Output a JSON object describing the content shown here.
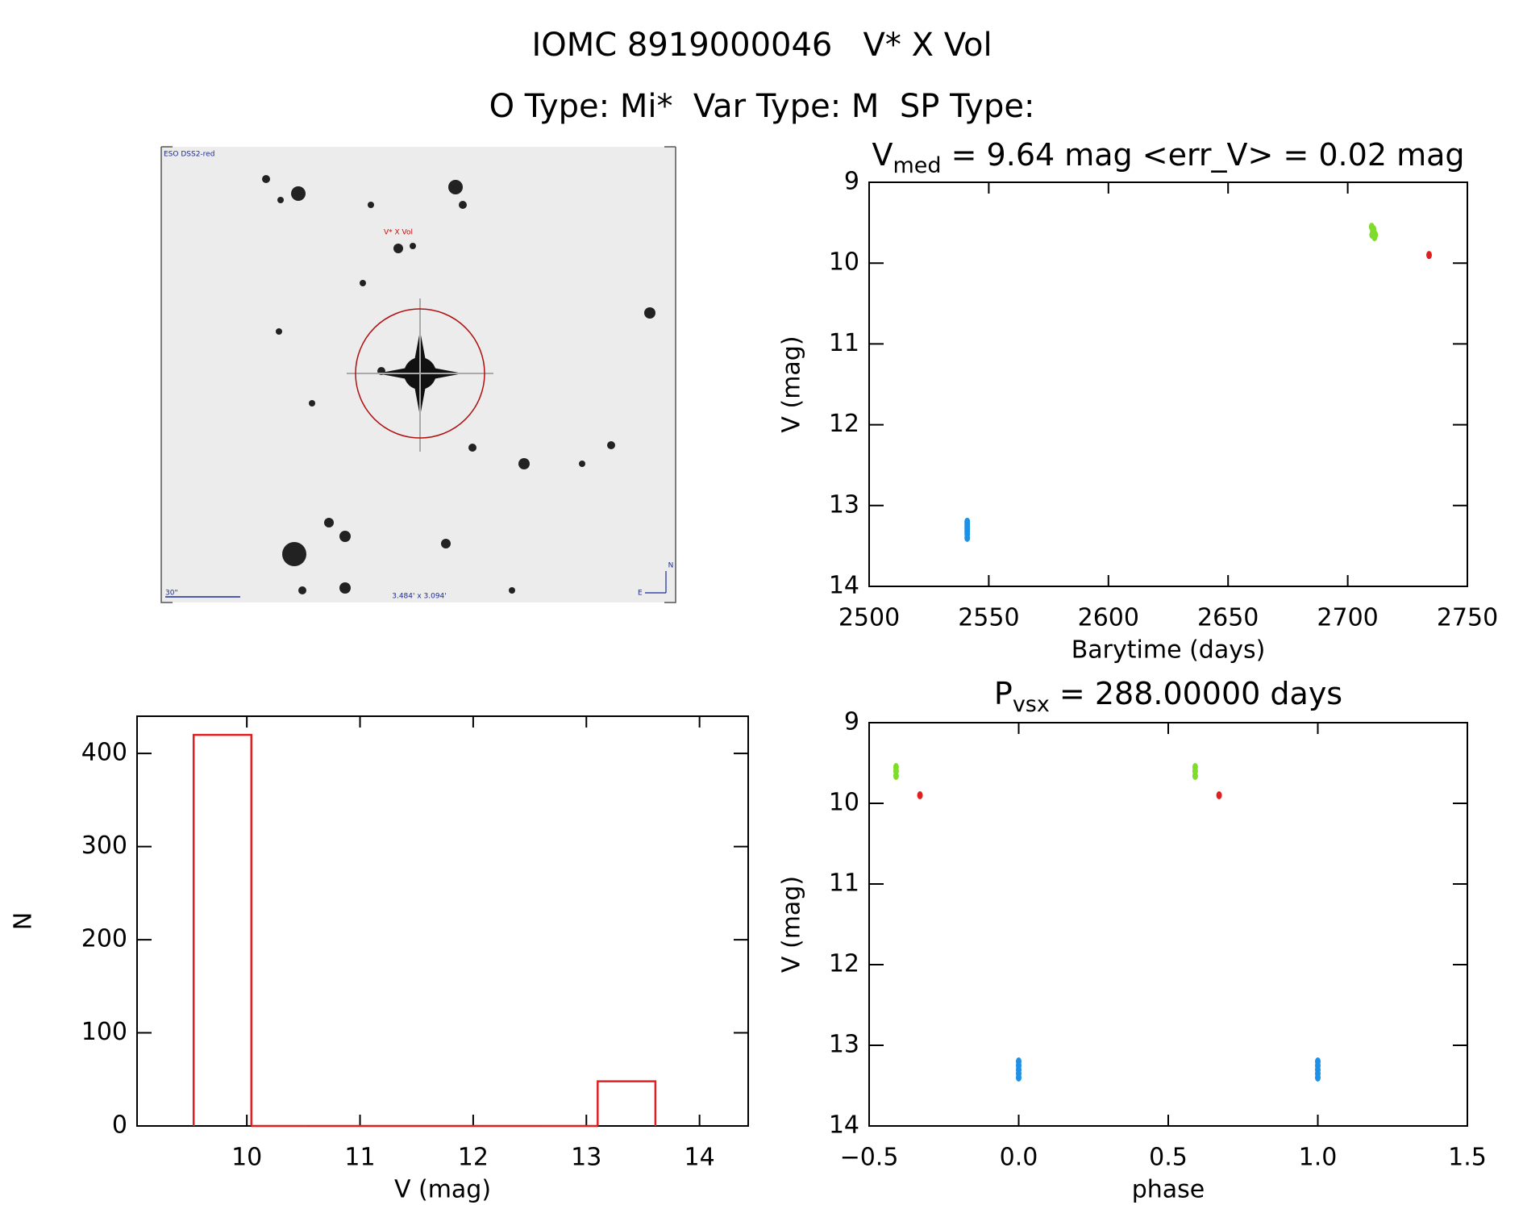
{
  "title": [
    "IOMC 8919000046   V* X Vol",
    "O Type: Mi*  Var Type: M  SP Type:"
  ],
  "finder": {
    "survey": "ESO DSS2-red",
    "target": "V* X Vol",
    "scale": "30\"",
    "field": "3.484' x 3.094'",
    "north": "N",
    "east": "E"
  },
  "chart_data": [
    {
      "type": "scatter",
      "title": [
        "V",
        "med",
        " = 9.64 mag <err_V> = 0.02 mag"
      ],
      "xlabel": "Barytime (days)",
      "ylabel": "V (mag)",
      "xlim": [
        2500,
        2750
      ],
      "xticks": [
        2500,
        2550,
        2600,
        2650,
        2700,
        2750
      ],
      "ylim": [
        14,
        9
      ],
      "yticks": [
        9,
        10,
        11,
        12,
        13,
        14
      ],
      "series": [
        {
          "color": "#1e90e6",
          "x": [
            2541,
            2541,
            2541,
            2541,
            2541,
            2541,
            2541
          ],
          "values": [
            13.2,
            13.23,
            13.26,
            13.29,
            13.32,
            13.35,
            13.4
          ]
        },
        {
          "color": "#7fdc2a",
          "x": [
            2710,
            2710.5,
            2711,
            2711.5,
            2710.2,
            2710.8,
            2711.2
          ],
          "values": [
            9.55,
            9.6,
            9.62,
            9.65,
            9.65,
            9.58,
            9.68
          ]
        },
        {
          "color": "#e02020",
          "x": [
            2734
          ],
          "values": [
            9.9
          ]
        }
      ]
    },
    {
      "type": "scatter",
      "title": [
        "P",
        "vsx",
        " = 288.00000 days"
      ],
      "xlabel": "phase",
      "ylabel": "V (mag)",
      "xlim": [
        -0.5,
        1.5
      ],
      "xticks": [
        {
          "value": -0.5,
          "label": "−0.5"
        },
        {
          "value": 0,
          "label": "0.0"
        },
        0.5,
        {
          "value": 1,
          "label": "1.0"
        },
        1.5
      ],
      "ylim": [
        14,
        9
      ],
      "yticks": [
        9,
        10,
        11,
        12,
        13,
        14
      ],
      "series": [
        {
          "color": "#1e90e6",
          "x": [
            0,
            0,
            0,
            0,
            0,
            1,
            1,
            1,
            1,
            1
          ],
          "values": [
            13.2,
            13.25,
            13.3,
            13.35,
            13.4,
            13.2,
            13.25,
            13.3,
            13.35,
            13.4
          ]
        },
        {
          "color": "#7fdc2a",
          "x": [
            -0.41,
            -0.41,
            -0.41,
            0.59,
            0.59,
            0.59
          ],
          "values": [
            9.55,
            9.6,
            9.66,
            9.55,
            9.6,
            9.66
          ]
        },
        {
          "color": "#e02020",
          "x": [
            -0.33,
            0.67
          ],
          "values": [
            9.9,
            9.9
          ]
        }
      ]
    },
    {
      "type": "histogram",
      "xlabel": "V (mag)",
      "ylabel": "N",
      "xlim": [
        9.03,
        14.43
      ],
      "xticks": [
        10,
        11,
        12,
        13,
        14
      ],
      "ylim": [
        0,
        440
      ],
      "yticks": [
        0,
        100,
        200,
        300,
        400
      ],
      "color": "#e02020",
      "bins": [
        9.53,
        10.04,
        10.55,
        11.06,
        11.57,
        12.08,
        12.59,
        13.1,
        13.61
      ],
      "values": [
        420,
        0,
        0,
        0,
        0,
        0,
        0,
        48
      ]
    }
  ]
}
